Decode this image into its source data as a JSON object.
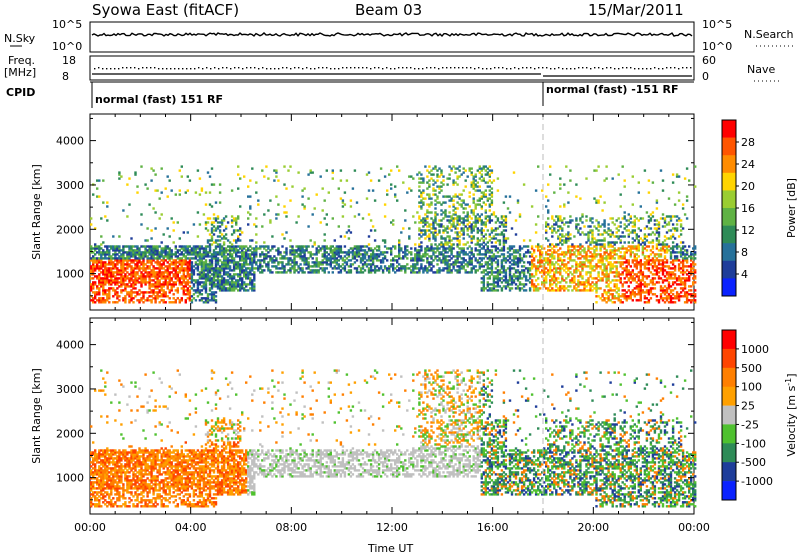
{
  "header": {
    "station": "Syowa East (fitACF)",
    "beam": "Beam 03",
    "date": "15/Mar/2011"
  },
  "summary": {
    "nsky_label": "N.Sky",
    "nsearch_label": "N.Search",
    "nsky_ticks": [
      "10^5",
      "10^0"
    ],
    "nsearch_ticks": [
      "10^5",
      "10^0"
    ],
    "freq_label_1": "Freq.",
    "freq_label_2": "[MHz]",
    "freq_ticks": [
      "18",
      "8"
    ],
    "nave_label": "Nave",
    "nave_ticks": [
      "60",
      "0"
    ],
    "cpid_label": "CPID",
    "cpid_modes": [
      {
        "label": "normal (fast) 151 RF",
        "start_hour": 0
      },
      {
        "label": "normal (fast) -151 RF",
        "start_hour": 18
      }
    ]
  },
  "chart_data": [
    {
      "type": "heatmap",
      "name": "power",
      "ylabel": "Slant Range [km]",
      "xlim": [
        0,
        24
      ],
      "ylim": [
        180,
        4600
      ],
      "yticks": [
        1000,
        2000,
        3000,
        4000
      ],
      "colorbar": {
        "label": "Power [dB]",
        "range": [
          0,
          32
        ],
        "ticks": [
          "28",
          "24",
          "20",
          "16",
          "12",
          "8",
          "4"
        ],
        "colors": [
          "#0a22ff",
          "#1e3d9a",
          "#26719a",
          "#2e8b57",
          "#5fb244",
          "#9acd32",
          "#ffd400",
          "#ff8c00",
          "#ff5500",
          "#ff0000"
        ]
      }
    },
    {
      "type": "heatmap",
      "name": "velocity",
      "ylabel": "Slant Range [km]",
      "xlabel": "Time UT",
      "xlim": [
        0,
        24
      ],
      "ylim": [
        180,
        4600
      ],
      "xticks": [
        "00:00",
        "04:00",
        "08:00",
        "12:00",
        "16:00",
        "20:00",
        "00:00"
      ],
      "yticks": [
        1000,
        2000,
        3000,
        4000
      ],
      "colorbar": {
        "label": "Velocity [m s",
        "label_sup": "-1",
        "label_end": "]",
        "ticks": [
          "1000",
          "500",
          "100",
          "25",
          "-25",
          "-100",
          "-500",
          "-1000"
        ],
        "colors": [
          "#0a22ff",
          "#1e3d9a",
          "#2e8b57",
          "#4fc12f",
          "#c0c0c0",
          "#ffa000",
          "#ff7f00",
          "#ff4500",
          "#ff0000"
        ]
      }
    }
  ]
}
